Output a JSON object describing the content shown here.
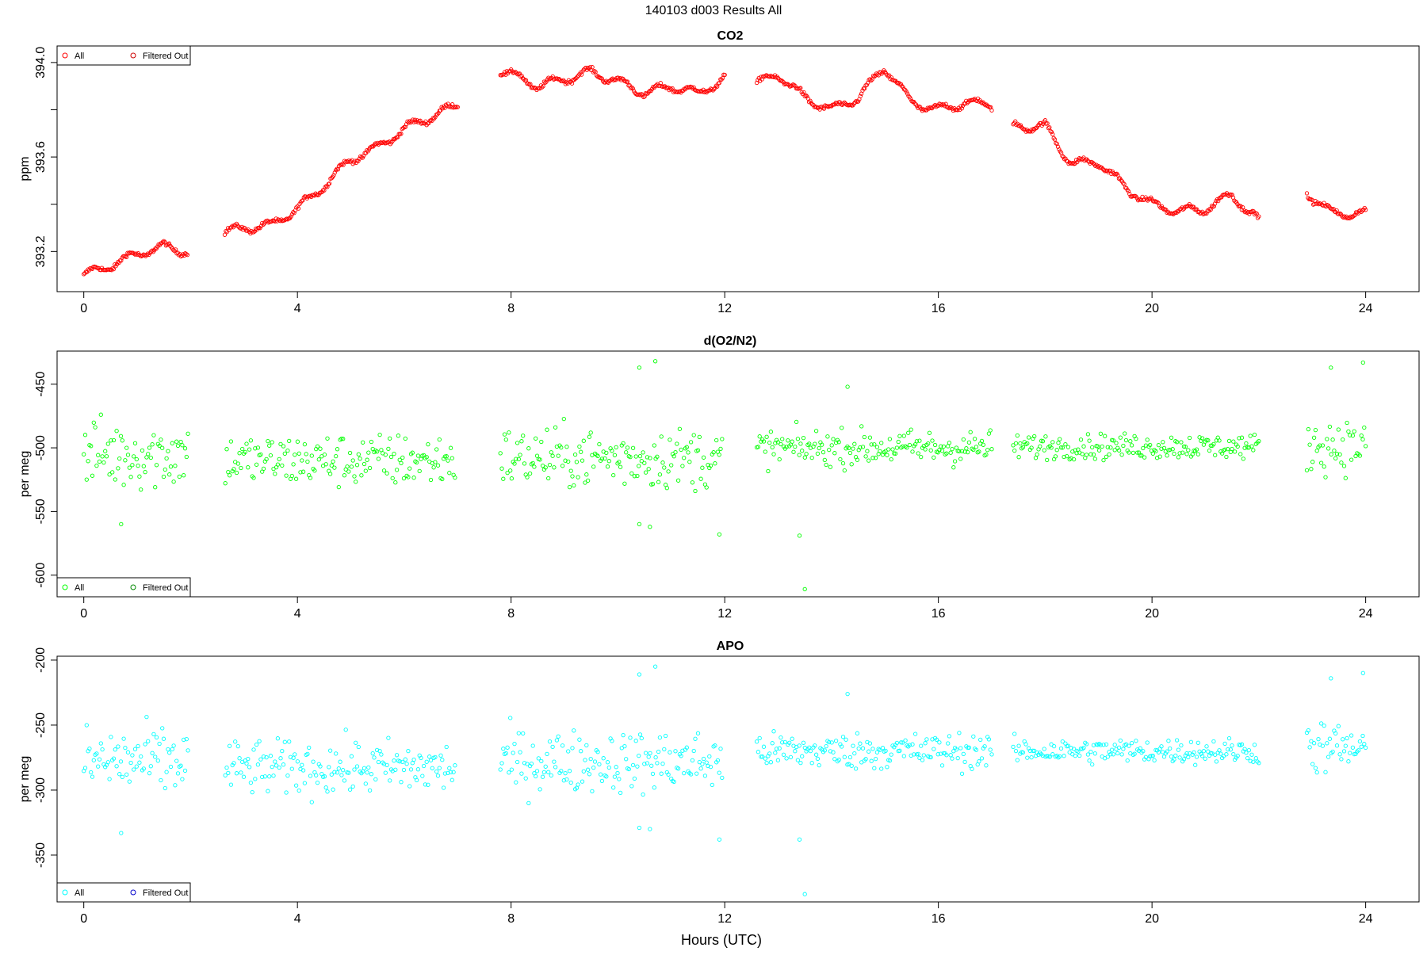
{
  "figure": {
    "title": "140103   d003   Results All",
    "xlabel": "Hours (UTC)"
  },
  "colors": {
    "co2": "#ff0000",
    "o2n2": "#00ff00",
    "apo": "#00ffff",
    "filtered_co2": "#cc0000",
    "filtered_o2n2": "#008800",
    "filtered_apo": "#0000cc",
    "axis": "#000000"
  },
  "chart_data": [
    {
      "type": "scatter",
      "title": "CO2",
      "ylabel": "ppm",
      "xlim": [
        -0.5,
        25
      ],
      "ylim": [
        393.03,
        394.07
      ],
      "xticks": [
        0,
        4,
        8,
        12,
        16,
        20,
        24
      ],
      "xtick_labels": [
        "0",
        "4",
        "8",
        "12",
        "16",
        "20",
        "24"
      ],
      "yticks": [
        393.2,
        393.4,
        393.6,
        393.8,
        394.0
      ],
      "ytick_labels": [
        "393.2",
        "",
        "393.6",
        "",
        "394.0"
      ],
      "legend": {
        "position": "top-left",
        "entries": [
          "All",
          "Filtered Out"
        ]
      },
      "grid": false,
      "series": [
        {
          "name": "All",
          "color": "#ff0000",
          "x": [
            0.0,
            0.5,
            1.0,
            1.5,
            1.95,
            2.65,
            3.0,
            3.5,
            4.0,
            4.5,
            5.0,
            5.5,
            6.0,
            6.5,
            7.0,
            7.8,
            8.5,
            9.0,
            9.5,
            10.0,
            10.5,
            11.0,
            11.5,
            12.0,
            12.6,
            13.0,
            13.5,
            14.0,
            14.5,
            15.0,
            15.5,
            16.0,
            16.5,
            17.0,
            17.4,
            18.0,
            18.5,
            19.0,
            19.5,
            20.0,
            20.5,
            21.0,
            21.5,
            22.0,
            22.9,
            23.3,
            23.6,
            24.0
          ],
          "y": [
            393.1,
            393.14,
            393.19,
            393.22,
            393.2,
            393.28,
            393.3,
            393.31,
            393.38,
            393.48,
            393.59,
            393.64,
            393.72,
            393.77,
            393.82,
            393.97,
            393.9,
            393.93,
            393.96,
            393.92,
            393.87,
            393.9,
            393.87,
            393.93,
            393.91,
            393.95,
            393.85,
            393.8,
            393.85,
            393.98,
            393.83,
            393.8,
            393.83,
            393.82,
            393.73,
            393.73,
            393.57,
            393.58,
            393.47,
            393.4,
            393.37,
            393.38,
            393.44,
            393.33,
            393.45,
            393.37,
            393.36,
            393.36
          ]
        }
      ]
    },
    {
      "type": "scatter",
      "title": "d(O2/N2)",
      "ylabel": "per meg",
      "xlim": [
        -0.5,
        25
      ],
      "ylim": [
        -617,
        -424
      ],
      "xticks": [
        0,
        4,
        8,
        12,
        16,
        20,
        24
      ],
      "xtick_labels": [
        "0",
        "4",
        "8",
        "12",
        "16",
        "20",
        "24"
      ],
      "yticks": [
        -600,
        -550,
        -500,
        -450
      ],
      "ytick_labels": [
        "-600",
        "-550",
        "-500",
        "-450"
      ],
      "legend": {
        "position": "bottom-left",
        "entries": [
          "All",
          "Filtered Out"
        ]
      },
      "grid": false,
      "series": [
        {
          "name": "All",
          "color": "#00ff00",
          "segments": [
            {
              "x_range": [
                0.0,
                1.95
              ],
              "mean": -505,
              "spread": 20
            },
            {
              "x_range": [
                2.65,
                6.95
              ],
              "mean": -510,
              "spread": 15
            },
            {
              "x_range": [
                7.8,
                11.95
              ],
              "mean": -508,
              "spread": 17
            },
            {
              "x_range": [
                12.6,
                17.0
              ],
              "mean": -500,
              "spread": 10
            },
            {
              "x_range": [
                17.4,
                22.0
              ],
              "mean": -499,
              "spread": 7
            },
            {
              "x_range": [
                22.9,
                24.0
              ],
              "mean": -498,
              "spread": 15
            }
          ],
          "outliers": [
            {
              "x": 10.4,
              "y": -437
            },
            {
              "x": 10.7,
              "y": -432
            },
            {
              "x": 0.7,
              "y": -560
            },
            {
              "x": 10.4,
              "y": -560
            },
            {
              "x": 10.6,
              "y": -562
            },
            {
              "x": 11.9,
              "y": -568
            },
            {
              "x": 13.4,
              "y": -569
            },
            {
              "x": 13.5,
              "y": -611
            },
            {
              "x": 23.35,
              "y": -437
            },
            {
              "x": 23.95,
              "y": -433
            },
            {
              "x": 14.3,
              "y": -452
            }
          ]
        }
      ]
    },
    {
      "type": "scatter",
      "title": "APO",
      "ylabel": "per meg",
      "xlim": [
        -0.5,
        25
      ],
      "ylim": [
        -386,
        -197
      ],
      "xticks": [
        0,
        4,
        8,
        12,
        16,
        20,
        24
      ],
      "xtick_labels": [
        "0",
        "4",
        "8",
        "12",
        "16",
        "20",
        "24"
      ],
      "yticks": [
        -350,
        -300,
        -250,
        -200
      ],
      "ytick_labels": [
        "-350",
        "-300",
        "-250",
        "-200"
      ],
      "legend": {
        "position": "bottom-left",
        "entries": [
          "All",
          "Filtered Out"
        ]
      },
      "grid": false,
      "series": [
        {
          "name": "All",
          "color": "#00ffff",
          "segments": [
            {
              "x_range": [
                0.0,
                1.95
              ],
              "mean": -278,
              "spread": 20
            },
            {
              "x_range": [
                2.65,
                6.95
              ],
              "mean": -283,
              "spread": 15
            },
            {
              "x_range": [
                7.8,
                11.95
              ],
              "mean": -278,
              "spread": 17
            },
            {
              "x_range": [
                12.6,
                17.0
              ],
              "mean": -270,
              "spread": 10
            },
            {
              "x_range": [
                17.4,
                22.0
              ],
              "mean": -270,
              "spread": 7
            },
            {
              "x_range": [
                22.9,
                24.0
              ],
              "mean": -268,
              "spread": 15
            }
          ],
          "outliers": [
            {
              "x": 10.4,
              "y": -211
            },
            {
              "x": 10.7,
              "y": -205
            },
            {
              "x": 0.7,
              "y": -333
            },
            {
              "x": 10.4,
              "y": -329
            },
            {
              "x": 10.6,
              "y": -330
            },
            {
              "x": 11.9,
              "y": -338
            },
            {
              "x": 13.4,
              "y": -338
            },
            {
              "x": 13.5,
              "y": -380
            },
            {
              "x": 23.35,
              "y": -214
            },
            {
              "x": 23.95,
              "y": -210
            },
            {
              "x": 14.3,
              "y": -226
            }
          ]
        }
      ]
    }
  ]
}
